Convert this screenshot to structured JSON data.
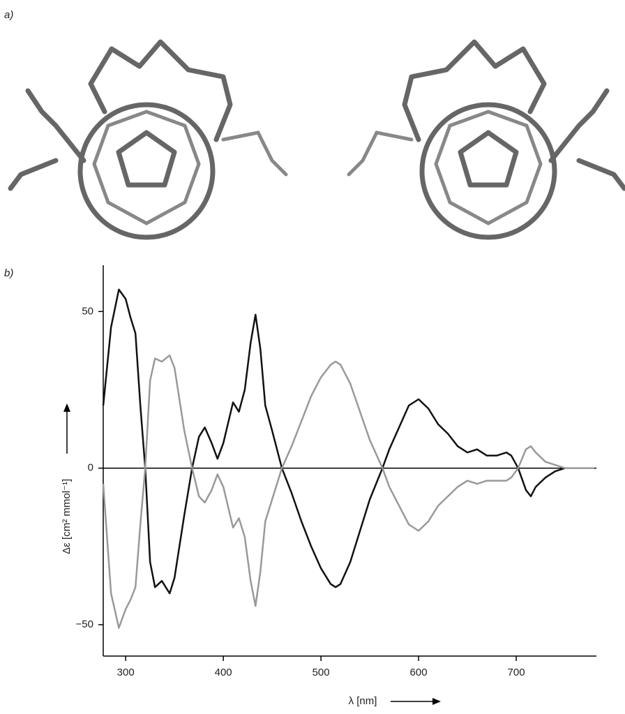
{
  "panel_a_label": "a)",
  "panel_b_label": "b)",
  "chart_data": {
    "type": "line",
    "x_label": "λ [nm]",
    "y_label": "Δε [cm² mmol⁻¹]",
    "x": [
      277,
      285,
      293,
      300,
      305,
      310,
      315,
      320,
      325,
      330,
      337,
      345,
      350,
      360,
      368,
      375,
      381,
      388,
      394,
      400,
      410,
      416,
      422,
      428,
      433,
      438,
      443,
      450,
      460,
      470,
      480,
      490,
      500,
      510,
      515,
      520,
      530,
      540,
      550,
      563,
      570,
      580,
      590,
      600,
      610,
      620,
      630,
      640,
      650,
      660,
      670,
      680,
      690,
      695,
      702,
      710,
      715,
      720,
      730,
      740,
      750,
      780
    ],
    "series": [
      {
        "color": "#111111",
        "values": [
          20,
          45,
          57,
          54,
          48,
          43,
          20,
          0,
          -30,
          -38,
          -36,
          -40,
          -35,
          -15,
          0,
          10,
          13,
          8,
          3,
          8,
          21,
          18,
          25,
          40,
          49,
          38,
          20,
          12,
          0,
          -8,
          -17,
          -25,
          -32,
          -37,
          -38,
          -37,
          -30,
          -20,
          -10,
          0,
          6,
          13,
          20,
          22,
          19,
          14,
          11,
          7,
          5,
          6,
          4,
          4,
          5,
          4,
          0,
          -7,
          -9,
          -6,
          -3,
          -1,
          0,
          0
        ]
      },
      {
        "color": "#999999",
        "values": [
          -5,
          -40,
          -51,
          -45,
          -42,
          -38,
          -18,
          0,
          28,
          35,
          34,
          36,
          32,
          12,
          0,
          -9,
          -11,
          -7,
          -2,
          -6,
          -19,
          -16,
          -22,
          -36,
          -44,
          -33,
          -17,
          -10,
          0,
          7,
          15,
          23,
          29,
          33,
          34,
          33,
          27,
          18,
          9,
          0,
          -6,
          -12,
          -18,
          -20,
          -17,
          -12,
          -9,
          -6,
          -4,
          -5,
          -4,
          -4,
          -4,
          -3,
          0,
          6,
          7,
          5,
          2,
          1,
          0,
          0
        ]
      }
    ],
    "xlim": [
      277,
      780
    ],
    "ylim": [
      -60,
      65
    ],
    "xticks": [
      300,
      400,
      500,
      600,
      700
    ],
    "yticks": [
      {
        "value": -50,
        "label": "−50"
      },
      0,
      50
    ]
  }
}
